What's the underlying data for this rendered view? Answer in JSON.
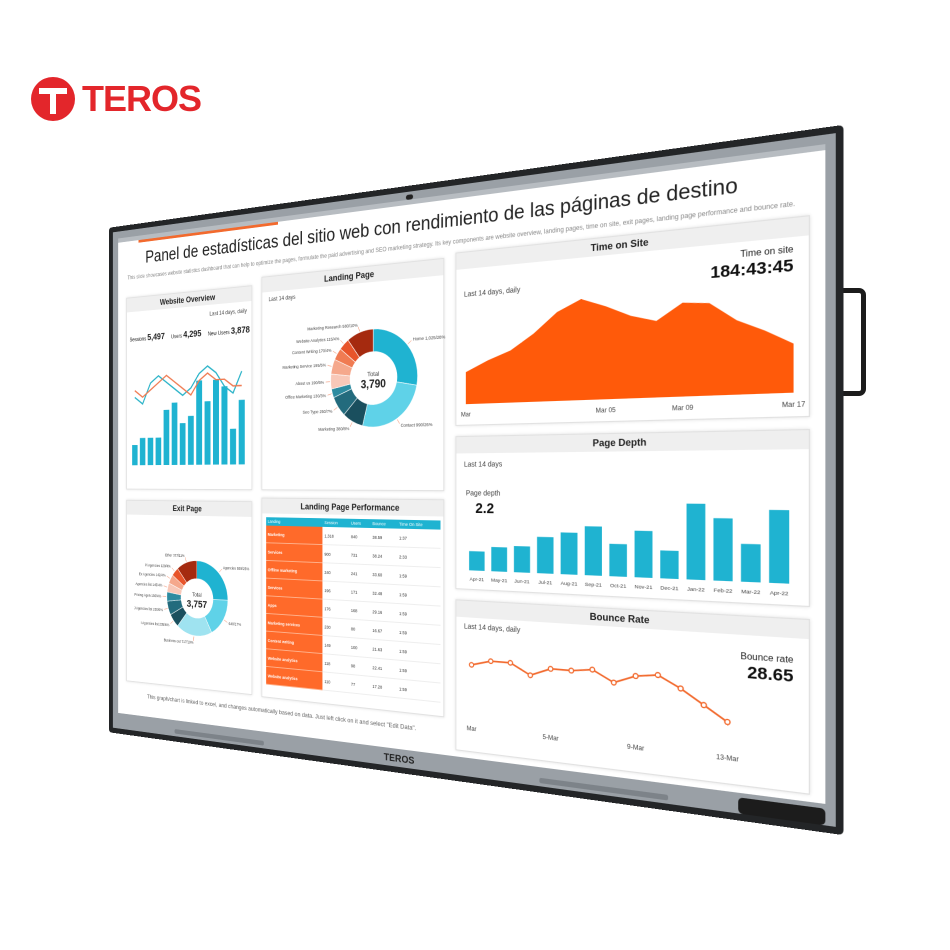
{
  "brand": "TEROS",
  "screen": {
    "title": "Panel de estadísticas del sitio web con rendimiento de las páginas de destino",
    "subtitle": "This slide showcases website statistics dashboard that can help to optimize the pages, formulate the paid advertising and SEO marketing strategy. Its key components are website overview, landing pages, time on site, exit pages, landing page performance and bounce rate.",
    "footer": "This graph/chart is linked to excel, and changes automatically based on data. Just left click on it and select \"Edit Data\".",
    "website_overview": {
      "type": "bar",
      "title": "Website Overview",
      "period": "Last 14 days, daily",
      "metrics": [
        {
          "label": "Sessions",
          "value": "5,497"
        },
        {
          "label": "Users",
          "value": "4,295"
        },
        {
          "label": "New Users",
          "value": "3,878"
        }
      ],
      "ylim": [
        0,
        16
      ],
      "color": "#1fb3d1",
      "values": [
        3,
        4,
        4,
        4,
        8,
        9,
        6,
        7,
        12,
        9,
        12,
        11,
        5,
        9
      ],
      "series": [
        {
          "color": "#2ab3c8",
          "values": [
            10,
            9,
            12,
            13,
            12,
            11,
            10,
            11,
            13,
            14,
            13,
            11,
            10,
            13
          ]
        },
        {
          "color": "#f07b52",
          "values": [
            11,
            10,
            11,
            12,
            13,
            12,
            11,
            10,
            12,
            13,
            12,
            12,
            11,
            11
          ]
        }
      ]
    },
    "landing_page": {
      "type": "pie",
      "title": "Landing Page",
      "period": "Last 14 days",
      "total_label": "Total",
      "total": "3,790",
      "labels": [
        "Home 1,025/28%",
        "Contact 990/26%",
        "Marketing 380/8%",
        "Seo Type 250/7%",
        "Office Marketing 130/3%",
        "About us 190/5%",
        "Marketing Service 195/5%",
        "Content Writing 170/4%",
        "Website Analytics 115/4%",
        "Marketing Research 580/10%"
      ],
      "values": [
        28,
        26,
        8,
        7,
        3,
        5,
        5,
        4,
        4,
        10
      ],
      "colors": [
        "#1fb3d1",
        "#5fd2e8",
        "#1a4f5e",
        "#236b7d",
        "#2d8ba0",
        "#f8c8b8",
        "#f5a88c",
        "#f07b52",
        "#e8542a",
        "#a52a0f"
      ]
    },
    "exit_page": {
      "type": "pie",
      "title": "Exit Page",
      "total_label": "Total",
      "total": "3,757",
      "labels": [
        "Agencies 929/25%",
        "640/17%",
        "Business out 717/19%",
        "I Agencies list 235/6%",
        "J Agencies list 230/6%",
        "Pricing Agen 150/4%",
        "Agencies list 145/4%",
        "Ex Agencies 142/4%",
        "Pi Agencies 129/4%",
        "Other 327/11%"
      ],
      "values": [
        25,
        17,
        19,
        6,
        6,
        4,
        4,
        4,
        4,
        11
      ],
      "colors": [
        "#1fb3d1",
        "#5fd2e8",
        "#9fe3f0",
        "#1a4f5e",
        "#236b7d",
        "#2d8ba0",
        "#f8c8b8",
        "#f5a88c",
        "#e8542a",
        "#a52a0f"
      ]
    },
    "landing_page_performance": {
      "title": "Landing Page Performance",
      "headers": [
        "Landing",
        "Session",
        "Users",
        "Bounce",
        "Time On Site"
      ],
      "rows": [
        [
          "Marketing",
          "1,318",
          "840",
          "38.59",
          "1:37"
        ],
        [
          "Services",
          "900",
          "731",
          "38.24",
          "2:33"
        ],
        [
          "Offline marketing",
          "240",
          "241",
          "33.60",
          "1:59"
        ],
        [
          "Services",
          "196",
          "171",
          "32.48",
          "1:59"
        ],
        [
          "Apps",
          "176",
          "168",
          "29.16",
          "1:59"
        ],
        [
          "Marketing services",
          "230",
          "80",
          "16.67",
          "1:59"
        ],
        [
          "Content writing",
          "149",
          "100",
          "21.63",
          "1:59"
        ],
        [
          "Website analytics",
          "118",
          "98",
          "22.41",
          "1:59"
        ],
        [
          "Website analytics",
          "110",
          "77",
          "17.20",
          "1:59"
        ]
      ]
    },
    "time_on_site": {
      "type": "area",
      "title": "Time on Site",
      "period": "Last 14 days, daily",
      "metric_label": "Time on site",
      "metric_value": "184:43:45",
      "color": "#ff5a0a",
      "ylim": [
        0,
        100
      ],
      "categories": [
        "Mar",
        null,
        null,
        null,
        null,
        null,
        "Mar 05",
        null,
        null,
        "Mar 09",
        null,
        null,
        null,
        "Mar 17"
      ],
      "values": [
        30,
        40,
        48,
        62,
        80,
        90,
        82,
        72,
        66,
        80,
        78,
        62,
        52,
        40
      ]
    },
    "page_depth": {
      "type": "bar",
      "title": "Page Depth",
      "period": "Last 14 days",
      "metric_label": "Page depth",
      "metric_value": "2.2",
      "color": "#1fb3d1",
      "ylim": [
        0,
        5
      ],
      "categories": [
        "Apr-21",
        "May-21",
        "Jun-21",
        "Jul-21",
        "Aug-21",
        "Sep-21",
        "Oct-21",
        "Nov-21",
        "Dec-21",
        "Jan-22",
        "Feb-22",
        "Mar-22",
        "Apr-22"
      ],
      "values": [
        1.2,
        1.5,
        1.6,
        2.2,
        2.5,
        2.9,
        1.9,
        2.7,
        1.6,
        4.3,
        3.5,
        2.1,
        4.0
      ]
    },
    "bounce_rate": {
      "type": "line",
      "title": "Bounce Rate",
      "period": "Last 14 days, daily",
      "metric_label": "Bounce rate",
      "metric_value": "28.65",
      "color": "#f26a2e",
      "ylim": [
        10,
        35
      ],
      "categories": [
        "Mar",
        null,
        null,
        null,
        "5-Mar",
        null,
        null,
        null,
        "9-Mar",
        null,
        null,
        null,
        "13-Mar"
      ],
      "values": [
        28,
        30,
        30,
        26,
        29,
        29,
        30,
        26,
        29,
        30,
        26,
        21,
        16
      ]
    }
  }
}
